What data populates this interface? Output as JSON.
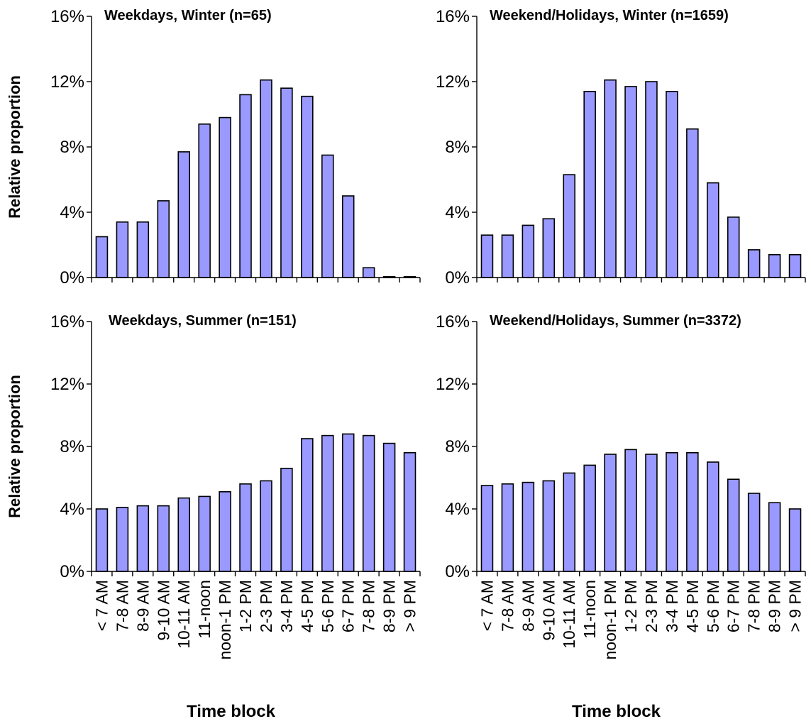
{
  "chart_data": {
    "type": "bar",
    "categories": [
      "< 7 AM",
      "7-8 AM",
      "8-9 AM",
      "9-10 AM",
      "10-11 AM",
      "11-noon",
      "noon-1 PM",
      "1-2 PM",
      "2-3 PM",
      "3-4 PM",
      "4-5 PM",
      "5-6 PM",
      "6-7 PM",
      "7-8 PM",
      "8-9 PM",
      "> 9 PM"
    ],
    "ylabel": "Relative proportion",
    "xlabel": "Time block",
    "ylim": [
      0,
      16
    ],
    "y_ticks": [
      "0%",
      "4%",
      "8%",
      "12%",
      "16%"
    ],
    "bar_color": "#9999ff",
    "bar_stroke": "#000000",
    "panels": [
      {
        "title": "Weekdays, Winter (n=65)",
        "values": [
          2.5,
          3.4,
          3.4,
          4.7,
          7.7,
          9.4,
          9.8,
          11.2,
          12.1,
          11.6,
          11.1,
          7.5,
          5.0,
          0.6,
          0.05,
          0.05
        ]
      },
      {
        "title": "Weekend/Holidays, Winter (n=1659)",
        "values": [
          2.6,
          2.6,
          3.2,
          3.6,
          6.3,
          11.4,
          12.1,
          11.7,
          12.0,
          11.4,
          9.1,
          5.8,
          3.7,
          1.7,
          1.4,
          1.4
        ]
      },
      {
        "title": "Weekdays, Summer (n=151)",
        "values": [
          4.0,
          4.1,
          4.2,
          4.2,
          4.7,
          4.8,
          5.1,
          5.6,
          5.8,
          6.6,
          8.5,
          8.7,
          8.8,
          8.7,
          8.2,
          7.6
        ]
      },
      {
        "title": "Weekend/Holidays, Summer (n=3372)",
        "values": [
          5.5,
          5.6,
          5.7,
          5.8,
          6.3,
          6.8,
          7.5,
          7.8,
          7.5,
          7.6,
          7.6,
          7.0,
          5.9,
          5.0,
          4.4,
          4.0
        ]
      }
    ]
  }
}
